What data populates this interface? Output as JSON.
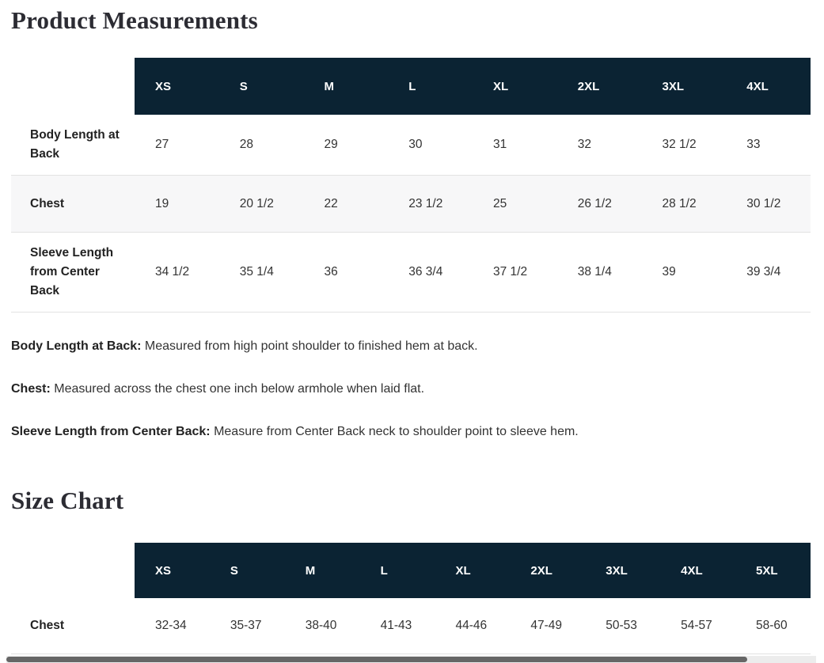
{
  "measurements": {
    "title": "Product Measurements",
    "table": {
      "columns": [
        "XS",
        "S",
        "M",
        "L",
        "XL",
        "2XL",
        "3XL",
        "4XL"
      ],
      "rows": [
        {
          "label": "Body Length at Back",
          "values": [
            "27",
            "28",
            "29",
            "30",
            "31",
            "32",
            "32 1/2",
            "33"
          ]
        },
        {
          "label": "Chest",
          "values": [
            "19",
            "20 1/2",
            "22",
            "23 1/2",
            "25",
            "26 1/2",
            "28 1/2",
            "30 1/2"
          ]
        },
        {
          "label": "Sleeve Length from Center Back",
          "values": [
            "34 1/2",
            "35 1/4",
            "36",
            "36 3/4",
            "37 1/2",
            "38 1/4",
            "39",
            "39 3/4"
          ]
        }
      ]
    },
    "notes": [
      {
        "term": "Body Length at Back:",
        "definition": "Measured from high point shoulder to finished hem at back."
      },
      {
        "term": "Chest:",
        "definition": "Measured across the chest one inch below armhole when laid flat."
      },
      {
        "term": "Sleeve Length from Center Back:",
        "definition": "Measure from Center Back neck to shoulder point to sleeve hem."
      }
    ]
  },
  "size_chart": {
    "title": "Size Chart",
    "table": {
      "columns": [
        "XS",
        "S",
        "M",
        "L",
        "XL",
        "2XL",
        "3XL",
        "4XL",
        "5XL"
      ],
      "rows": [
        {
          "label": "Chest",
          "values": [
            "32-34",
            "35-37",
            "38-40",
            "41-43",
            "44-46",
            "47-49",
            "50-53",
            "54-57",
            "58-60"
          ]
        }
      ]
    }
  },
  "colors": {
    "header_bg": "#0b2333",
    "header_text": "#ffffff",
    "alt_row_bg": "#f7f7f8",
    "row_border": "#e2e2e2",
    "title_text": "#2c2c33",
    "body_text": "#333333",
    "scrollbar_thumb": "#666666",
    "scrollbar_track": "#ececec"
  }
}
